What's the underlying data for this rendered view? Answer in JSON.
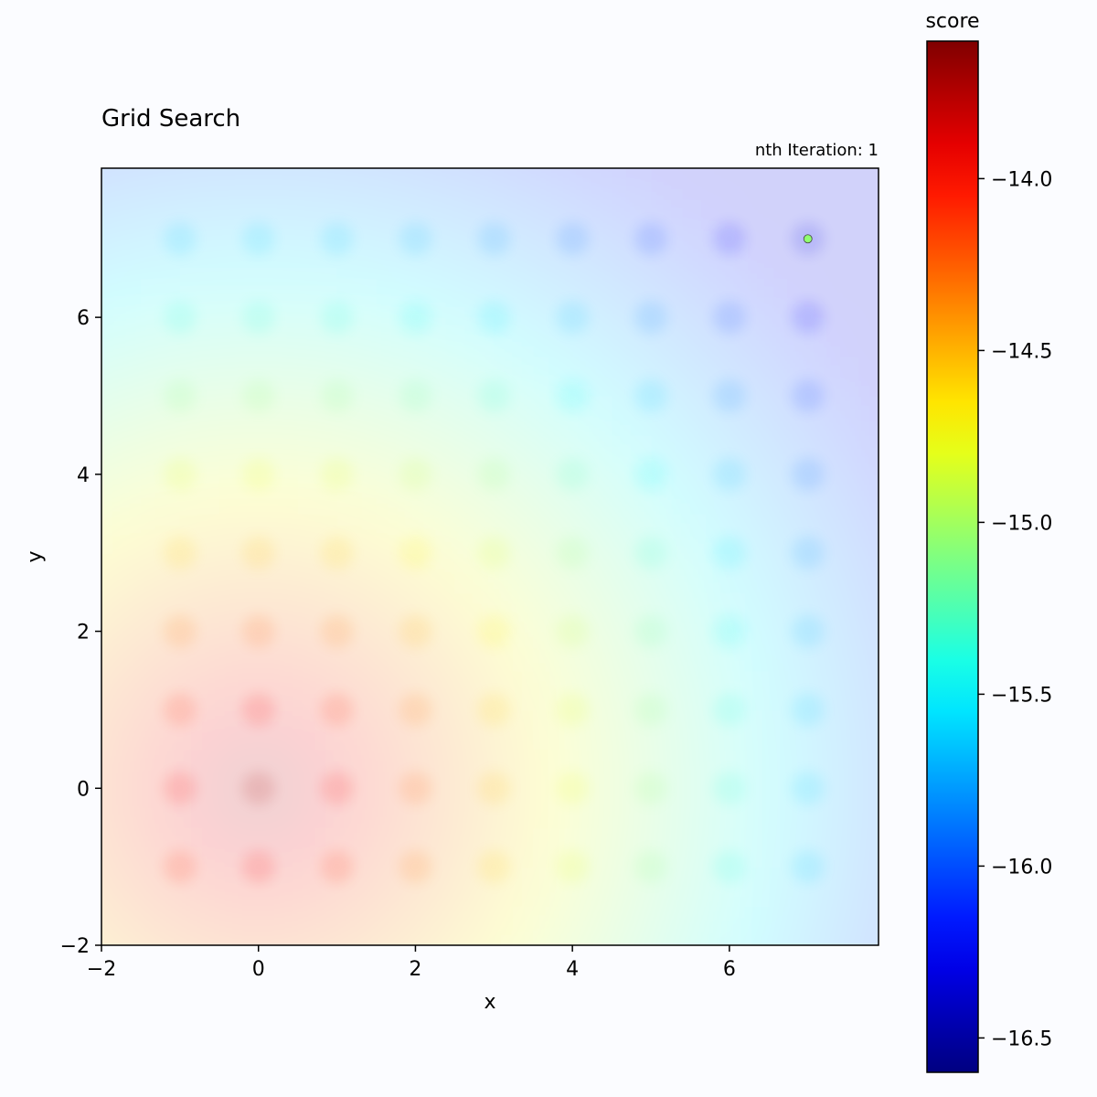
{
  "chart_data": {
    "type": "heatmap",
    "title": "Grid Search",
    "annotation": "nth Iteration: 1",
    "xlabel": "x",
    "ylabel": "y",
    "xlim": [
      -2,
      7.9
    ],
    "ylim": [
      -2,
      7.9
    ],
    "xticks": [
      -2,
      0,
      2,
      4,
      6
    ],
    "yticks": [
      -2,
      0,
      2,
      4,
      6
    ],
    "xtick_labels": [
      "−2",
      "0",
      "2",
      "4",
      "6"
    ],
    "ytick_labels": [
      "−2",
      "0",
      "2",
      "4",
      "6"
    ],
    "colorbar": {
      "label": "score",
      "colormap": "jet_r",
      "range": [
        -16.6,
        -13.6
      ],
      "ticks": [
        -14.0,
        -14.5,
        -15.0,
        -15.5,
        -16.0,
        -16.5
      ],
      "tick_labels": [
        "−14.0",
        "−14.5",
        "−15.0",
        "−15.5",
        "−16.0",
        "−16.5"
      ]
    },
    "surface": {
      "description": "faint background score surface over the search space",
      "min_at": [
        0,
        0
      ],
      "min_score": -13.7,
      "max_score": -16.3,
      "grid_step": 1
    },
    "points": [
      {
        "x": 7,
        "y": 7,
        "score": -15.05
      }
    ]
  },
  "colors": {
    "background": "#fbfcff",
    "point": "#66ee55"
  }
}
